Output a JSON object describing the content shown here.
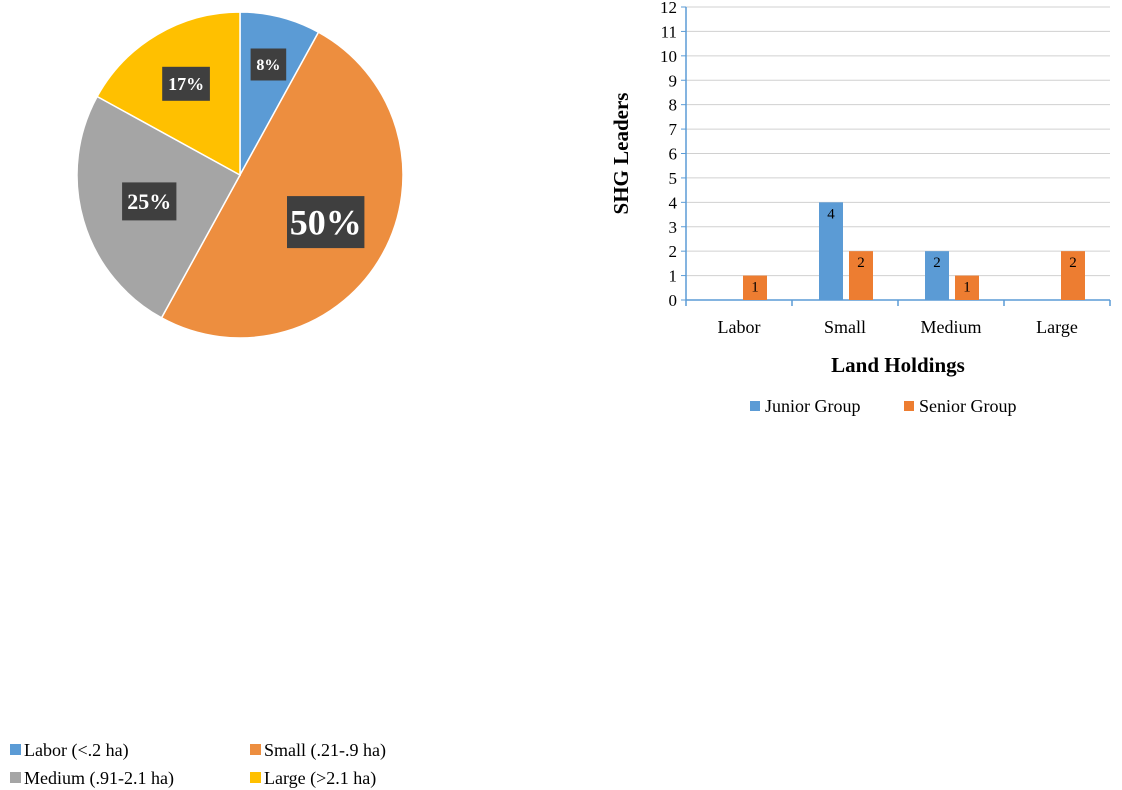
{
  "chart_data": [
    {
      "type": "pie",
      "slices": [
        {
          "label": "Labor (<.2 ha)",
          "value": 8,
          "data_label": "8%",
          "color": "#5b9bd5"
        },
        {
          "label": "Small (.21-.9 ha)",
          "value": 50,
          "data_label": "50%",
          "color": "#ed8e3f"
        },
        {
          "label": "Medium (.91-2.1 ha)",
          "value": 25,
          "data_label": "25%",
          "color": "#a5a5a5"
        },
        {
          "label": "Large (>2.1 ha)",
          "value": 17,
          "data_label": "17%",
          "color": "#ffc000"
        }
      ],
      "legend": [
        "Labor (<.2 ha)",
        "Small (.21-.9 ha)",
        "Medium (.91-2.1 ha)",
        "Large (>2.1 ha)"
      ],
      "legend_position": "bottom",
      "data_label_style": {
        "background": "#3f3f3f",
        "text_color": "#ffffff"
      }
    },
    {
      "type": "bar",
      "categories": [
        "Labor",
        "Small",
        "Medium",
        "Large"
      ],
      "series": [
        {
          "name": "Junior Group",
          "values": [
            0,
            4,
            2,
            0
          ],
          "color": "#5b9bd5"
        },
        {
          "name": "Senior Group",
          "values": [
            1,
            2,
            1,
            2
          ],
          "color": "#ed7d31"
        }
      ],
      "xlabel": "Land Holdings",
      "ylabel": "SHG Leaders",
      "ylim": [
        0,
        12
      ],
      "yticks": [
        0,
        1,
        2,
        3,
        4,
        5,
        6,
        7,
        8,
        9,
        10,
        11,
        12
      ],
      "data_labels": [
        "1",
        "4",
        "2",
        "2",
        "1",
        "2"
      ],
      "grid": true,
      "legend_position": "bottom"
    }
  ]
}
